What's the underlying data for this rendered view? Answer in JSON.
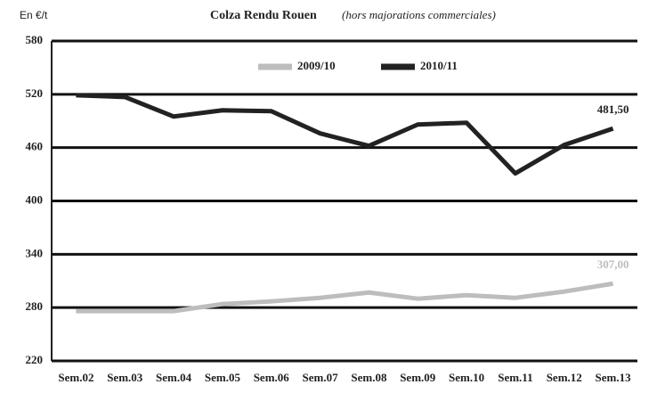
{
  "chart_data": {
    "type": "line",
    "title": "Colza Rendu Rouen",
    "subtitle": "(hors majorations commerciales)",
    "y_label": "En €/t",
    "categories": [
      "Sem.02",
      "Sem.03",
      "Sem.04",
      "Sem.05",
      "Sem.06",
      "Sem.07",
      "Sem.08",
      "Sem.09",
      "Sem.10",
      "Sem.11",
      "Sem.12",
      "Sem.13"
    ],
    "series": [
      {
        "name": "2009/10",
        "color": "#bdbdbd",
        "values": [
          276,
          276,
          276,
          284,
          287,
          291,
          297,
          290,
          294,
          291,
          298,
          307
        ],
        "value_labels": [
          null,
          null,
          null,
          null,
          null,
          null,
          null,
          null,
          null,
          null,
          null,
          "307,00"
        ]
      },
      {
        "name": "2010/11",
        "color": "#222222",
        "values": [
          519,
          517,
          495,
          502,
          501,
          476,
          462,
          486,
          488,
          431,
          463,
          481.5
        ],
        "value_labels": [
          null,
          null,
          null,
          null,
          null,
          null,
          null,
          null,
          null,
          null,
          null,
          "481,50"
        ]
      }
    ],
    "ylim": [
      220,
      580
    ],
    "yticks": [
      220,
      280,
      340,
      400,
      460,
      520,
      580
    ],
    "grid": true,
    "legend": "top"
  }
}
